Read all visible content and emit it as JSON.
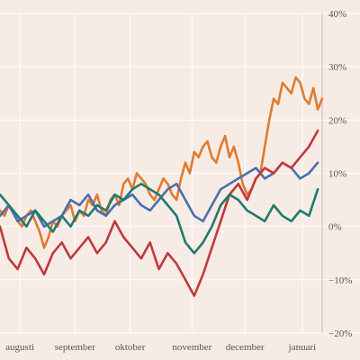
{
  "chart_data": {
    "type": "line",
    "title": "",
    "xlabel": "",
    "ylabel": "",
    "ylim": [
      -20,
      40
    ],
    "yticks": [
      -20,
      -10,
      0,
      10,
      20,
      30,
      40
    ],
    "ytick_labels": [
      "−20%",
      "−10%",
      "0%",
      "10%",
      "20%",
      "30%",
      "40%"
    ],
    "xticks": [
      {
        "label": "augusti",
        "x": 9
      },
      {
        "label": "september",
        "x": 34
      },
      {
        "label": "oktober",
        "x": 59
      },
      {
        "label": "november",
        "x": 87
      },
      {
        "label": "december",
        "x": 111
      },
      {
        "label": "januari",
        "x": 137
      }
    ],
    "grid": true,
    "legend": "none",
    "series": [
      {
        "color": "#e07b2e",
        "x": [
          0,
          2,
          4,
          6,
          8,
          10,
          12,
          14,
          16,
          18,
          20,
          22,
          24,
          26,
          28,
          30,
          32,
          34,
          36,
          38,
          40,
          42,
          44,
          46,
          48,
          50,
          52,
          54,
          56,
          58,
          60,
          62,
          64,
          66,
          68,
          70,
          72,
          74,
          76,
          78,
          80,
          82,
          84,
          86,
          88,
          90,
          92,
          94,
          96,
          98,
          100,
          102,
          104,
          106,
          108,
          110,
          112,
          114,
          116,
          118,
          120,
          122,
          124,
          126,
          128,
          130,
          132,
          134,
          136,
          138,
          140,
          142,
          144,
          146
        ],
        "values": [
          3,
          2,
          4,
          3,
          1,
          0,
          2,
          3,
          1,
          -1,
          -4,
          -2,
          1,
          0,
          2,
          3,
          4,
          1,
          3,
          2,
          5,
          4,
          6,
          3,
          2,
          5,
          6,
          4,
          8,
          9,
          7,
          10,
          9,
          8,
          6,
          5,
          7,
          9,
          8,
          6,
          5,
          9,
          12,
          10,
          14,
          13,
          15,
          16,
          13,
          12,
          15,
          17,
          13,
          15,
          12,
          8,
          6,
          7,
          9,
          10,
          15,
          20,
          24,
          23,
          27,
          26,
          25,
          28,
          27,
          24,
          23,
          26,
          22,
          24
        ]
      },
      {
        "color": "#4a6fb0",
        "x": [
          0,
          4,
          8,
          12,
          16,
          20,
          24,
          28,
          32,
          36,
          40,
          44,
          48,
          52,
          56,
          60,
          64,
          68,
          72,
          76,
          80,
          84,
          88,
          92,
          96,
          100,
          104,
          108,
          112,
          116,
          120,
          124,
          128,
          132,
          136,
          140,
          144
        ],
        "values": [
          2,
          4,
          1,
          2,
          3,
          0,
          1,
          2,
          5,
          4,
          6,
          3,
          2,
          4,
          5,
          6,
          4,
          3,
          5,
          7,
          8,
          5,
          2,
          1,
          4,
          7,
          8,
          9,
          10,
          11,
          9,
          10,
          12,
          11,
          9,
          10,
          12
        ]
      },
      {
        "color": "#c0393b",
        "x": [
          0,
          4,
          8,
          12,
          16,
          20,
          24,
          28,
          32,
          36,
          40,
          44,
          48,
          52,
          56,
          60,
          64,
          68,
          72,
          76,
          80,
          84,
          88,
          92,
          96,
          100,
          104,
          108,
          112,
          116,
          120,
          124,
          128,
          132,
          136,
          140,
          144
        ],
        "values": [
          0,
          -6,
          -8,
          -4,
          -6,
          -9,
          -5,
          -3,
          -6,
          -4,
          -2,
          -5,
          -3,
          1,
          -2,
          -4,
          -6,
          -3,
          -8,
          -5,
          -7,
          -10,
          -13,
          -9,
          -4,
          1,
          6,
          8,
          5,
          9,
          11,
          10,
          12,
          11,
          13,
          15,
          18
        ]
      },
      {
        "color": "#1f7a6e",
        "x": [
          0,
          4,
          8,
          12,
          16,
          20,
          24,
          28,
          32,
          36,
          40,
          44,
          48,
          52,
          56,
          60,
          64,
          68,
          72,
          76,
          80,
          84,
          88,
          92,
          96,
          100,
          104,
          108,
          112,
          116,
          120,
          124,
          128,
          132,
          136,
          140,
          144
        ],
        "values": [
          6,
          4,
          2,
          0,
          3,
          1,
          -1,
          2,
          0,
          3,
          2,
          4,
          3,
          6,
          5,
          7,
          8,
          7,
          6,
          4,
          2,
          -3,
          -5,
          -3,
          0,
          4,
          6,
          5,
          3,
          2,
          1,
          4,
          2,
          1,
          3,
          2,
          7
        ]
      }
    ]
  }
}
